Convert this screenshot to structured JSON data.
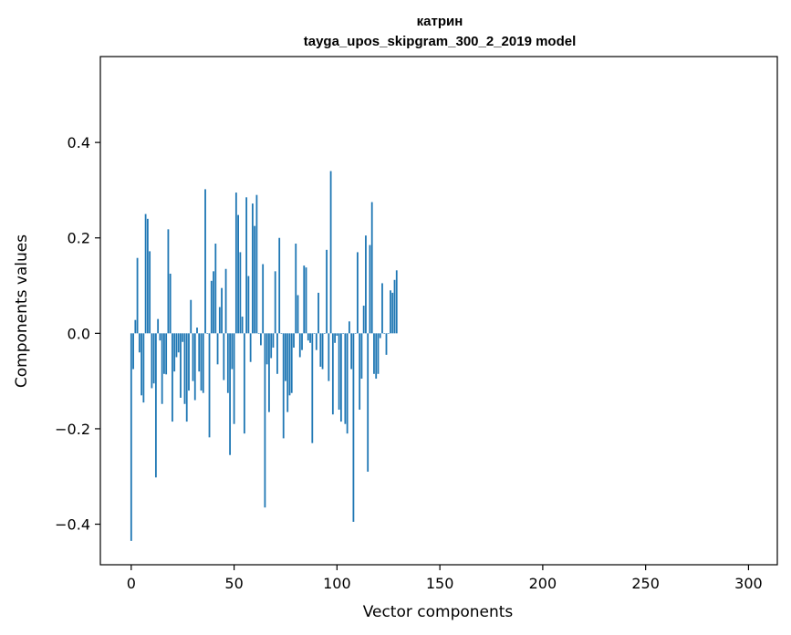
{
  "chart_data": {
    "type": "bar",
    "title": "катрин",
    "subtitle": "tayga_upos_skipgram_300_2_2019 model",
    "xlabel": "Vector components",
    "ylabel": "Components values",
    "xlim": [
      -15,
      314
    ],
    "ylim": [
      -0.485,
      0.58
    ],
    "xticks": [
      0,
      50,
      100,
      150,
      200,
      250,
      300
    ],
    "xtick_labels": [
      "0",
      "50",
      "100",
      "150",
      "200",
      "250",
      "300"
    ],
    "yticks": [
      -0.4,
      -0.2,
      0.0,
      0.2,
      0.4
    ],
    "ytick_labels": [
      "−0.4",
      "−0.2",
      "0.0",
      "0.2",
      "0.4"
    ],
    "grid": false,
    "color": "#1f77b4",
    "x_start": 0,
    "values": [
      -0.435,
      -0.075,
      0.028,
      0.158,
      -0.04,
      -0.13,
      -0.145,
      0.25,
      0.24,
      0.172,
      -0.115,
      -0.105,
      -0.302,
      0.03,
      -0.015,
      -0.148,
      -0.085,
      -0.086,
      0.218,
      0.125,
      -0.185,
      -0.08,
      -0.05,
      -0.04,
      -0.135,
      -0.018,
      -0.148,
      -0.185,
      -0.12,
      0.07,
      -0.1,
      -0.14,
      0.012,
      -0.08,
      -0.12,
      -0.125,
      0.302,
      0.0,
      -0.218,
      0.11,
      0.13,
      0.188,
      -0.065,
      0.055,
      0.095,
      -0.098,
      0.135,
      -0.125,
      -0.255,
      -0.075,
      -0.19,
      0.295,
      0.248,
      0.17,
      0.035,
      -0.21,
      0.285,
      0.12,
      -0.06,
      0.272,
      0.225,
      0.29,
      0.0,
      -0.025,
      0.145,
      -0.365,
      -0.065,
      -0.165,
      -0.052,
      -0.03,
      0.13,
      -0.085,
      0.2,
      0.0,
      -0.22,
      -0.1,
      -0.165,
      -0.13,
      -0.125,
      -0.03,
      0.188,
      0.08,
      -0.05,
      -0.035,
      0.142,
      0.138,
      -0.015,
      -0.02,
      -0.23,
      0.0,
      -0.035,
      0.085,
      -0.07,
      -0.075,
      0.0,
      0.175,
      -0.1,
      0.34,
      -0.17,
      -0.02,
      -0.005,
      -0.16,
      -0.185,
      0.0,
      -0.19,
      -0.21,
      0.025,
      -0.075,
      -0.395,
      0.0,
      0.17,
      -0.16,
      -0.095,
      0.058,
      0.205,
      -0.29,
      0.185,
      0.275,
      -0.085,
      -0.095,
      -0.085,
      -0.01,
      0.105,
      0.0,
      -0.045,
      0.0,
      0.09,
      0.085,
      0.112,
      0.132
    ]
  }
}
